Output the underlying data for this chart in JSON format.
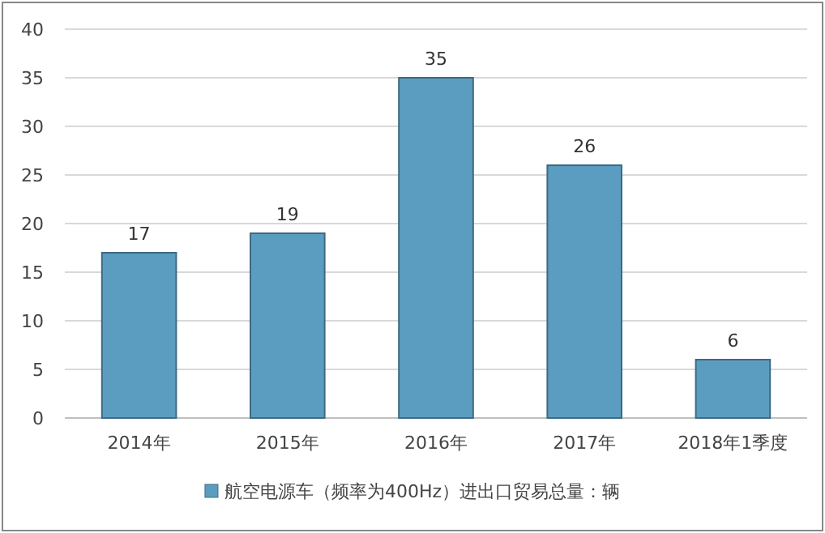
{
  "chart_data": {
    "type": "bar",
    "categories": [
      "2014年",
      "2015年",
      "2016年",
      "2017年",
      "2018年1季度"
    ],
    "series": [
      {
        "name": "航空电源车（频率为400Hz）进出口贸易总量：辆",
        "color": "#5b9dc0",
        "values": [
          17,
          19,
          35,
          26,
          6
        ]
      }
    ],
    "ylim": [
      0,
      40
    ],
    "yticks": [
      0,
      5,
      10,
      15,
      20,
      25,
      30,
      35,
      40
    ],
    "grid": "y",
    "data_labels": true,
    "legend": "bottom"
  }
}
